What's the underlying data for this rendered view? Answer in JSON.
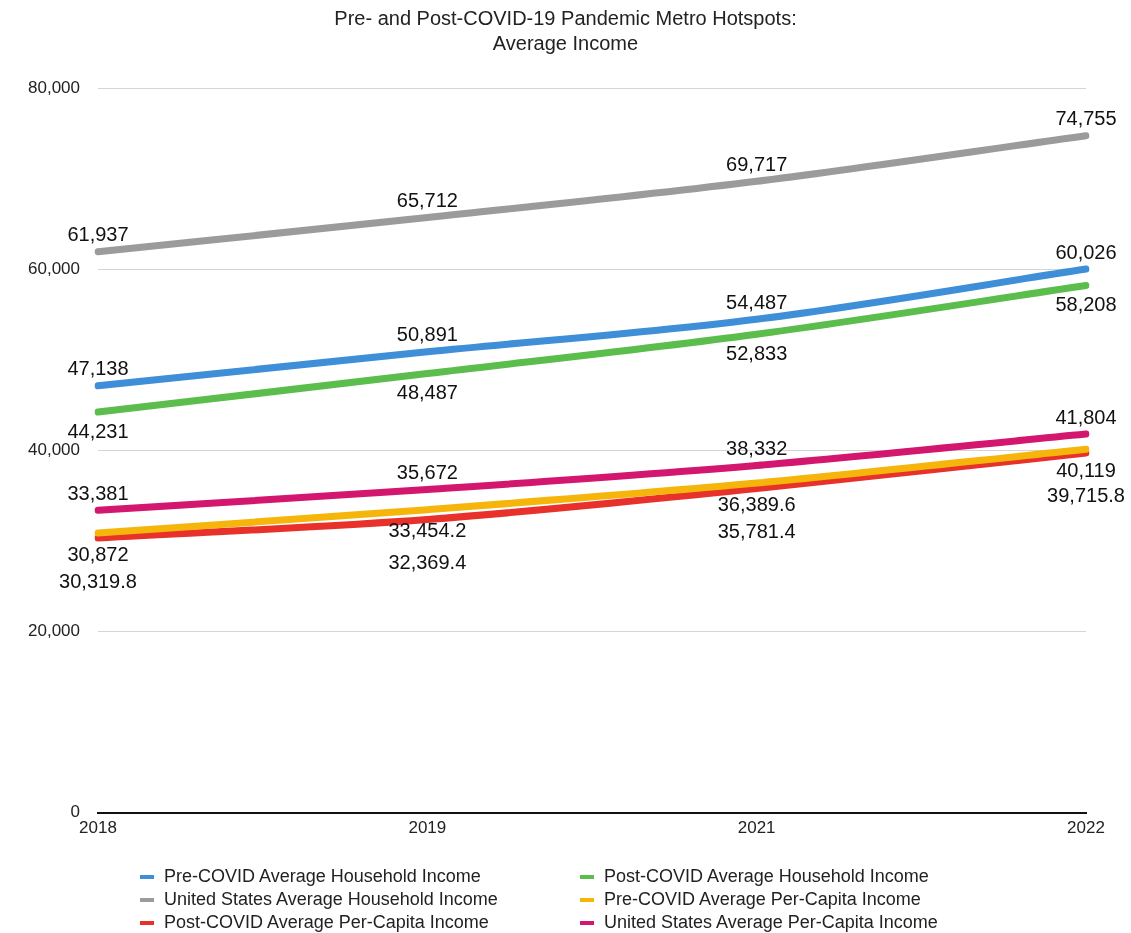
{
  "chart_data": {
    "type": "line",
    "title": "Pre- and Post-COVID-19 Pandemic Metro Hotspots: Average Income",
    "categories": [
      "2018",
      "2019",
      "2021",
      "2022"
    ],
    "series": [
      {
        "name": "Pre-COVID Average Household Income",
        "color": "#3e8fd8",
        "values": [
          47138,
          50891,
          54487,
          60026
        ],
        "value_labels": [
          "47,138",
          "50,891",
          "54,487",
          "60,026"
        ]
      },
      {
        "name": "Post-COVID Average Household Income",
        "color": "#5bbd4b",
        "values": [
          44231,
          48487,
          52833,
          58208
        ],
        "value_labels": [
          "44,231",
          "48,487",
          "52,833",
          "58,208"
        ]
      },
      {
        "name": "United States Average Household Income",
        "color": "#9b9b9b",
        "values": [
          61937,
          65712,
          69717,
          74755
        ],
        "value_labels": [
          "61,937",
          "65,712",
          "69,717",
          "74,755"
        ]
      },
      {
        "name": "Pre-COVID Average Per-Capita Income",
        "color": "#f5b50a",
        "values": [
          30872,
          33454.2,
          36389.6,
          40119
        ],
        "value_labels": [
          "30,872",
          "33,454.2",
          "36,389.6",
          "40,119"
        ]
      },
      {
        "name": "Post-COVID Average Per-Capita Income",
        "color": "#e8312a",
        "values": [
          30319.8,
          32369.4,
          35781.4,
          39715.8
        ],
        "value_labels": [
          "30,319.8",
          "32,369.4",
          "35,781.4",
          "39,715.8"
        ]
      },
      {
        "name": "United States Average Per-Capita Income",
        "color": "#d3166e",
        "values": [
          33381,
          35672,
          38332,
          41804
        ],
        "value_labels": [
          "33,381",
          "35,672",
          "38,332",
          "41,804"
        ]
      }
    ],
    "ylim": [
      0,
      80000
    ],
    "yticks": [
      {
        "value": 0,
        "label": "0"
      },
      {
        "value": 20000,
        "label": "20,000"
      },
      {
        "value": 40000,
        "label": "40,000"
      },
      {
        "value": 60000,
        "label": "60,000"
      },
      {
        "value": 80000,
        "label": "80,000"
      }
    ],
    "grid": "y",
    "legend": "bottom",
    "marker": "none",
    "line_style": "solid"
  }
}
